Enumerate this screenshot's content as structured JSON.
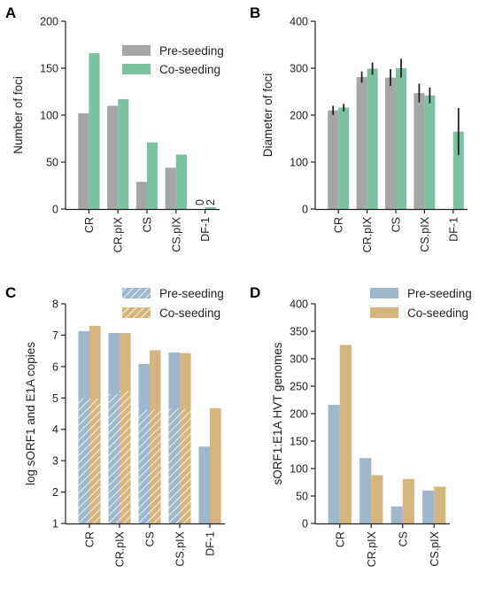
{
  "colors": {
    "pre_gray": "#a6a6a6",
    "co_green": "#7cc2a1",
    "pre_blue": "#9fb7cb",
    "co_tan": "#d4b57e",
    "hatch_line": "#ffffff",
    "axis": "#222222",
    "error_bar": "#222222"
  },
  "chart_data": [
    {
      "panel": "A",
      "type": "bar",
      "categories": [
        "CR",
        "CR.pIX",
        "CS",
        "CS.pIX",
        "DF-1"
      ],
      "series": [
        {
          "name": "Pre-seeding",
          "values": [
            102,
            110,
            29,
            44,
            0
          ],
          "color_key": "pre_gray"
        },
        {
          "name": "Co-seeding",
          "values": [
            166,
            117,
            71,
            58,
            2
          ],
          "color_key": "co_green"
        }
      ],
      "ylabel": "Number of foci",
      "ylim": [
        0,
        200
      ],
      "yticks": [
        "0",
        "50",
        "100",
        "150",
        "200"
      ],
      "data_labels": [
        {
          "text": "0",
          "category": "DF-1",
          "series": 0
        },
        {
          "text": "2",
          "category": "DF-1",
          "series": 1
        }
      ],
      "legend": "top-right",
      "grid": false
    },
    {
      "panel": "B",
      "type": "bar",
      "categories": [
        "CR",
        "CR.pIX",
        "CS",
        "CS.pIX",
        "DF-1"
      ],
      "series": [
        {
          "name": "Pre-seeding",
          "values": [
            210,
            281,
            280,
            247,
            null
          ],
          "errors": [
            10,
            12,
            18,
            20,
            null
          ],
          "color_key": "pre_gray"
        },
        {
          "name": "Co-seeding",
          "values": [
            216,
            299,
            300,
            242,
            165
          ],
          "errors": [
            8,
            13,
            20,
            17,
            50
          ],
          "color_key": "co_green"
        }
      ],
      "ylabel": "Diameter of foci",
      "ylim": [
        0,
        400
      ],
      "yticks": [
        "0",
        "100",
        "200",
        "300",
        "400"
      ],
      "grid": false
    },
    {
      "panel": "C",
      "type": "bar",
      "categories": [
        "CR",
        "CR.pIX",
        "CS",
        "CS.pIX",
        "DF-1"
      ],
      "series": [
        {
          "name": "Pre-seeding",
          "values": [
            7.13,
            7.07,
            6.08,
            6.45,
            3.45
          ],
          "hatched_values": [
            5.0,
            5.12,
            4.62,
            4.67,
            null
          ],
          "color_key": "pre_blue"
        },
        {
          "name": "Co-seeding",
          "values": [
            7.3,
            7.07,
            6.52,
            6.43,
            4.67
          ],
          "hatched_values": [
            4.98,
            5.22,
            4.63,
            4.65,
            null
          ],
          "color_key": "co_tan"
        }
      ],
      "ylabel": "log sORF1 and E1A copies",
      "ylim": [
        1,
        8
      ],
      "yticks": [
        "1",
        "2",
        "3",
        "4",
        "5",
        "6",
        "7",
        "8"
      ],
      "legend": "top-right",
      "grid": false
    },
    {
      "panel": "D",
      "type": "bar",
      "categories": [
        "CR",
        "CR.pIX",
        "CS",
        "CS.pIX"
      ],
      "series": [
        {
          "name": "Pre-seeding",
          "values": [
            216,
            119,
            31,
            60
          ],
          "color_key": "pre_blue"
        },
        {
          "name": "Co-seeding",
          "values": [
            325,
            88,
            81,
            67
          ],
          "color_key": "co_tan"
        }
      ],
      "ylabel": "sORF1:E1A HVT genomes",
      "ylim": [
        0,
        400
      ],
      "yticks": [
        "0",
        "50",
        "100",
        "150",
        "200",
        "250",
        "300",
        "350",
        "400"
      ],
      "legend": "top-right",
      "grid": false
    }
  ]
}
